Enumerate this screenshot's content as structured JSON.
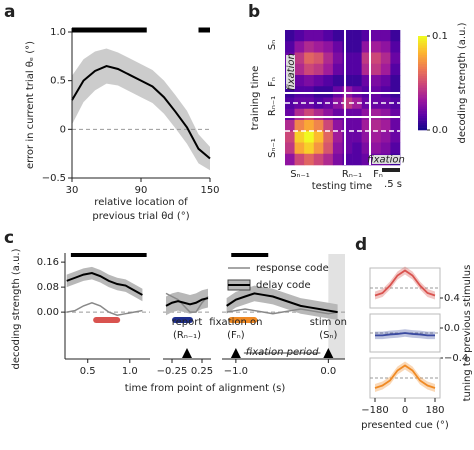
{
  "chart_data": [
    {
      "type": "line",
      "panel": "a",
      "x": [
        30,
        40,
        50,
        60,
        70,
        80,
        90,
        100,
        110,
        120,
        130,
        140,
        150
      ],
      "values": [
        0.3,
        0.5,
        0.6,
        0.65,
        0.62,
        0.56,
        0.5,
        0.44,
        0.33,
        0.18,
        0.02,
        -0.2,
        -0.3
      ],
      "errors": [
        0.25,
        0.22,
        0.2,
        0.18,
        0.17,
        0.17,
        0.17,
        0.17,
        0.17,
        0.17,
        0.17,
        0.15,
        0.12
      ],
      "color": "#000000",
      "band_color": "#cccccc",
      "xlim": [
        30,
        150
      ],
      "ylim": [
        -0.5,
        1
      ],
      "xticks": [
        30,
        90,
        150
      ],
      "yticks": [
        {
          "value": -0.5,
          "label": "−0.5"
        },
        0,
        0.5,
        {
          "value": 1,
          "label": "1.0"
        }
      ],
      "ylabel": "error in current trial θₑ (°)",
      "xlabel": [
        "relative location of",
        "previous trial θd (°)"
      ],
      "significance": [
        [
          30,
          95
        ],
        [
          140,
          150
        ]
      ]
    },
    {
      "type": "heatmap",
      "panel": "b",
      "matrix": [
        [
          0.01,
          0.015,
          0.02,
          0.02,
          0.015,
          0.01,
          0.01,
          0.01,
          0.015,
          0.02,
          0.02,
          0.01
        ],
        [
          0.015,
          0.03,
          0.04,
          0.035,
          0.03,
          0.02,
          0.01,
          0.01,
          0.03,
          0.035,
          0.03,
          0.015
        ],
        [
          0.02,
          0.045,
          0.06,
          0.055,
          0.04,
          0.025,
          0.015,
          0.015,
          0.045,
          0.05,
          0.04,
          0.02
        ],
        [
          0.015,
          0.04,
          0.05,
          0.045,
          0.035,
          0.02,
          0.015,
          0.015,
          0.04,
          0.045,
          0.035,
          0.015
        ],
        [
          0.01,
          0.02,
          0.025,
          0.02,
          0.015,
          0.01,
          0.01,
          0.01,
          0.02,
          0.025,
          0.02,
          0.01
        ],
        [
          0.01,
          0.015,
          0.015,
          0.01,
          0.01,
          0.02,
          0.03,
          0.02,
          0.015,
          0.02,
          0.015,
          0.01
        ],
        [
          0.015,
          0.02,
          0.02,
          0.015,
          0.02,
          0.03,
          0.045,
          0.035,
          0.02,
          0.02,
          0.02,
          0.015
        ],
        [
          0.02,
          0.04,
          0.05,
          0.04,
          0.03,
          0.02,
          0.02,
          0.02,
          0.03,
          0.035,
          0.03,
          0.02
        ],
        [
          0.04,
          0.07,
          0.08,
          0.07,
          0.05,
          0.03,
          0.02,
          0.02,
          0.035,
          0.04,
          0.035,
          0.02
        ],
        [
          0.05,
          0.09,
          0.1,
          0.085,
          0.06,
          0.035,
          0.02,
          0.02,
          0.03,
          0.035,
          0.03,
          0.02
        ],
        [
          0.045,
          0.08,
          0.09,
          0.075,
          0.055,
          0.03,
          0.02,
          0.015,
          0.025,
          0.03,
          0.025,
          0.015
        ],
        [
          0.03,
          0.05,
          0.06,
          0.05,
          0.04,
          0.025,
          0.015,
          0.015,
          0.02,
          0.02,
          0.02,
          0.01
        ]
      ],
      "clim": [
        0,
        0.1
      ],
      "colormap": [
        "#0d0887",
        "#5c01a6",
        "#9c179e",
        "#cc4778",
        "#ed7953",
        "#fdb42f",
        "#f0f921"
      ],
      "colorbar_ticks": [
        {
          "value": 0,
          "label": "0.0"
        },
        {
          "value": 0.1,
          "label": "0.1"
        }
      ],
      "colorbar_label": "decoding strength (a.u.)",
      "row_labels": [
        "Sₙ",
        "Fₙ",
        "Rₙ₋₁",
        "Sₙ₋₁"
      ],
      "col_labels": [
        "Sₙ₋₁",
        "Rₙ₋₁",
        "Fₙ"
      ],
      "annotations": [
        "fixation",
        "fixation"
      ],
      "xlabel": "testing time",
      "ylabel": "training time",
      "scale_bar": ".5 s"
    },
    {
      "type": "line",
      "panel": "c",
      "ylim": [
        -0.15,
        0.17
      ],
      "yticks": [
        {
          "value": 0,
          "label": "0.00"
        },
        {
          "value": 0.08,
          "label": "0.08"
        },
        {
          "value": 0.16,
          "label": "0.16"
        }
      ],
      "ylabel": "decoding strength (a.u.)",
      "xlabel": "time from point of alignment (s)",
      "series": [
        {
          "name": "response code",
          "color": "#888888",
          "segments": [
            [
              0.0,
              0.005,
              0.02,
              0.03,
              0.02,
              0.0,
              -0.01,
              -0.005,
              0.0,
              0.005
            ],
            [
              0.06,
              0.05,
              0.04,
              0.02,
              0.0,
              0.0,
              0.03,
              0.05
            ],
            [
              0.0,
              0.005,
              0.01,
              0.005,
              0.0,
              -0.005,
              0.0,
              0.005,
              0.01,
              0.005,
              0.0,
              -0.005,
              0.0
            ]
          ]
        },
        {
          "name": "delay code",
          "color": "#000000",
          "band_color": "#b8b8b8",
          "segments": [
            [
              0.1,
              0.11,
              0.12,
              0.125,
              0.115,
              0.1,
              0.09,
              0.085,
              0.07,
              0.055
            ],
            [
              0.02,
              0.03,
              0.035,
              0.03,
              0.025,
              0.03,
              0.04,
              0.045
            ],
            [
              0.02,
              0.04,
              0.05,
              0.06,
              0.055,
              0.05,
              0.04,
              0.03,
              0.02,
              0.015,
              0.01,
              0.005,
              0.0
            ]
          ],
          "errors": [
            [
              0.02,
              0.02,
              0.02,
              0.02,
              0.02,
              0.02,
              0.02,
              0.02,
              0.02,
              0.02
            ],
            [
              0.03,
              0.03,
              0.03,
              0.03,
              0.03,
              0.03,
              0.03,
              0.03
            ],
            [
              0.025,
              0.025,
              0.025,
              0.025,
              0.025,
              0.025,
              0.025,
              0.025,
              0.025,
              0.025,
              0.025,
              0.025,
              0.025
            ]
          ]
        }
      ],
      "panels": [
        {
          "x": [
            0.25,
            0.35,
            0.45,
            0.55,
            0.65,
            0.75,
            0.85,
            0.95,
            1.05,
            1.15
          ],
          "xlim": [
            0.23,
            1.24
          ],
          "xticks": [
            0.5,
            {
              "value": 1,
              "label": "1.0"
            }
          ],
          "significance": [
            [
              0.3,
              1.2
            ]
          ],
          "window": {
            "range": [
              0.6,
              0.85
            ],
            "color": "#d9534f"
          },
          "markers": []
        },
        {
          "x": [
            -0.35,
            -0.25,
            -0.15,
            -0.05,
            0.05,
            0.15,
            0.25,
            0.35
          ],
          "xlim": [
            -0.4,
            0.4
          ],
          "xticks": [
            {
              "value": -0.25,
              "label": "−0.25"
            },
            0.25
          ],
          "significance": [],
          "window": {
            "range": [
              -0.2,
              0.05
            ],
            "color": "#1f2f8f"
          },
          "markers": [
            {
              "x": 0,
              "label": [
                "report",
                "(Rₙ₋₁)"
              ]
            }
          ]
        },
        {
          "x": [
            -1.1,
            -1.0,
            -0.9,
            -0.8,
            -0.7,
            -0.6,
            -0.5,
            -0.4,
            -0.3,
            -0.2,
            -0.1,
            0.0,
            0.1
          ],
          "xlim": [
            -1.15,
            0.18
          ],
          "xticks": [
            {
              "value": -1,
              "label": "−1.0"
            },
            {
              "value": 0,
              "label": "0.0"
            }
          ],
          "significance": [
            [
              -1.05,
              -0.65
            ]
          ],
          "window": {
            "range": [
              -1.05,
              -0.8
            ],
            "color": "#f08a24"
          },
          "shade": [
            0,
            0.18
          ],
          "period": "fixation period",
          "markers": [
            {
              "x": -1,
              "label": [
                "fixation on",
                "(Fₙ)"
              ]
            },
            {
              "x": 0,
              "label": [
                "stim on",
                "(Sₙ)"
              ]
            }
          ]
        }
      ]
    },
    {
      "type": "line",
      "panel": "d",
      "x": [
        -180,
        -135,
        -90,
        -45,
        0,
        45,
        90,
        135,
        180
      ],
      "xlim": [
        -210,
        210
      ],
      "ylim": [
        -0.4,
        0.4
      ],
      "xticks": [
        {
          "value": -180,
          "label": "−180"
        },
        0,
        180
      ],
      "yticks": [
        0.4,
        {
          "value": 0,
          "label": "0.0"
        },
        {
          "value": -0.4,
          "label": "−0.4"
        }
      ],
      "xlabel": "presented cue (°)",
      "ylabel": "tuning to previous stimulus",
      "series": [
        {
          "color": "#d9534f",
          "values": [
            -0.15,
            -0.1,
            0.05,
            0.25,
            0.35,
            0.25,
            0.05,
            -0.1,
            -0.15
          ],
          "errors": [
            0.08,
            0.08,
            0.08,
            0.08,
            0.08,
            0.08,
            0.08,
            0.08,
            0.08
          ]
        },
        {
          "color": "#3a4aa0",
          "values": [
            -0.05,
            -0.05,
            -0.03,
            -0.02,
            0,
            -0.02,
            -0.03,
            -0.05,
            -0.05
          ],
          "errors": [
            0.08,
            0.08,
            0.08,
            0.08,
            0.08,
            0.08,
            0.08,
            0.08,
            0.08
          ]
        },
        {
          "color": "#f08a24",
          "values": [
            -0.2,
            -0.15,
            -0.05,
            0.15,
            0.25,
            0.15,
            -0.05,
            -0.15,
            -0.2
          ],
          "errors": [
            0.08,
            0.08,
            0.08,
            0.08,
            0.08,
            0.08,
            0.08,
            0.08,
            0.08
          ]
        }
      ]
    }
  ]
}
